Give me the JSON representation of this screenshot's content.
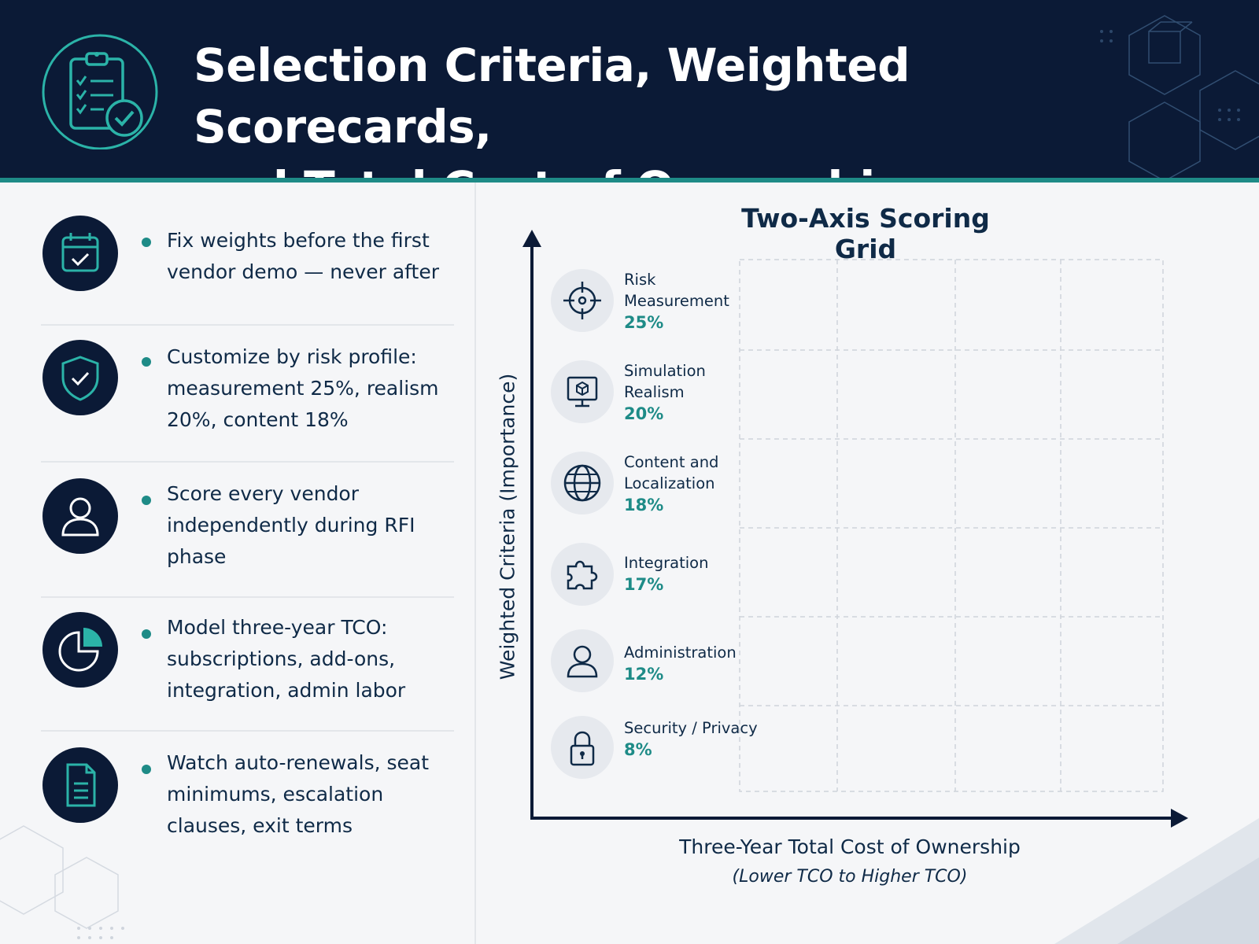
{
  "header": {
    "title_line1": "Selection Criteria, Weighted Scorecards,",
    "title_line2": "and Total Cost of Ownership",
    "icon": "clipboard-check-icon"
  },
  "bullets": [
    {
      "icon": "calendar-check-icon",
      "text": "Fix weights before the first vendor demo — never after"
    },
    {
      "icon": "shield-check-icon",
      "text": "Customize by risk profile: measurement 25%, realism 20%, content 18%"
    },
    {
      "icon": "user-icon",
      "text": "Score every vendor independently during RFI phase"
    },
    {
      "icon": "pie-chart-icon",
      "text": "Model three-year TCO: subscriptions, add-ons, integration, admin labor"
    },
    {
      "icon": "document-icon",
      "text": "Watch auto-renewals, seat minimums, escalation clauses, exit terms"
    }
  ],
  "chart": {
    "title": "Two-Axis Scoring Grid",
    "ylabel": "Weighted Criteria (Importance)",
    "xlabel": "Three-Year Total Cost of Ownership",
    "xlabel_sub": "(Lower TCO to Higher TCO)"
  },
  "criteria": [
    {
      "icon": "target-icon",
      "name": "Risk Measurement",
      "weight": "25%"
    },
    {
      "icon": "monitor-cube-icon",
      "name": "Simulation Realism",
      "weight": "20%"
    },
    {
      "icon": "globe-icon",
      "name": "Content and Localization",
      "weight": "18%"
    },
    {
      "icon": "puzzle-icon",
      "name": "Integration",
      "weight": "17%"
    },
    {
      "icon": "user-icon",
      "name": "Administration",
      "weight": "12%"
    },
    {
      "icon": "lock-icon",
      "name": "Security / Privacy",
      "weight": "8%"
    }
  ],
  "colors": {
    "navy": "#0b1a36",
    "teal": "#1e8b87",
    "text": "#0f2a47"
  }
}
